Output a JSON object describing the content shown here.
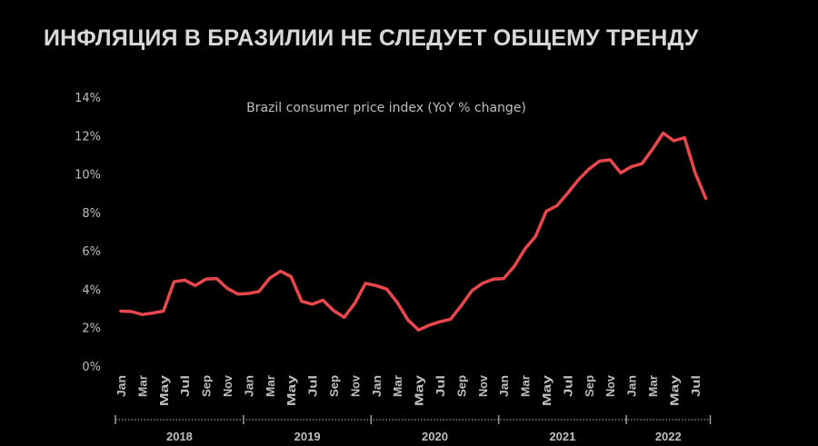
{
  "title": "ИНФЛЯЦИЯ В БРАЗИЛИИ НЕ СЛЕДУЕТ ОБЩЕМУ ТРЕНДУ",
  "chart_data": {
    "type": "line",
    "title": "Brazil consumer price index (YoY % change)",
    "xlabel": "",
    "ylabel": "",
    "ylim": [
      0,
      14
    ],
    "y_ticks": [
      "0%",
      "2%",
      "4%",
      "6%",
      "8%",
      "10%",
      "12%",
      "14%"
    ],
    "grid": false,
    "years": [
      "2018",
      "2019",
      "2020",
      "2021",
      "2022"
    ],
    "month_tick_labels": [
      "Jan",
      "Mar",
      "May",
      "Jul",
      "Sep",
      "Nov"
    ],
    "line_color": "#e8484d",
    "series": [
      {
        "name": "Brazil CPI YoY %",
        "start": "2018-01",
        "values": [
          2.86,
          2.84,
          2.68,
          2.76,
          2.86,
          4.39,
          4.48,
          4.19,
          4.53,
          4.56,
          4.05,
          3.75,
          3.78,
          3.89,
          4.58,
          4.94,
          4.66,
          3.37,
          3.22,
          3.43,
          2.89,
          2.54,
          3.27,
          4.31,
          4.19,
          4.01,
          3.3,
          2.4,
          1.88,
          2.13,
          2.31,
          2.44,
          3.14,
          3.92,
          4.31,
          4.52,
          4.56,
          5.2,
          6.1,
          6.76,
          8.06,
          8.35,
          8.99,
          9.68,
          10.25,
          10.67,
          10.74,
          10.06,
          10.38,
          10.54,
          11.3,
          12.13,
          11.73,
          11.89,
          10.07,
          8.73
        ]
      }
    ]
  }
}
